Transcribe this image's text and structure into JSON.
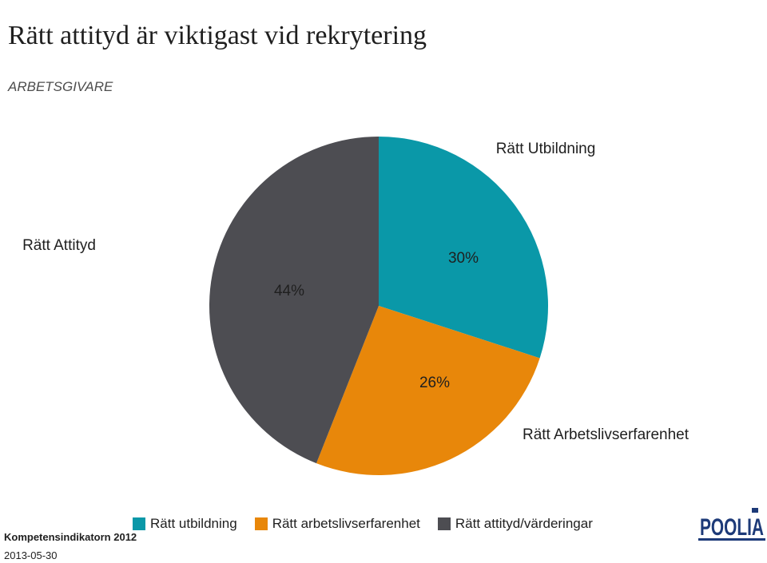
{
  "header": {
    "title": "Rätt attityd är viktigast vid rekrytering",
    "subtitle": "ARBETSGIVARE"
  },
  "chart_data": {
    "type": "pie",
    "categories": [
      "Rätt utbildning",
      "Rätt arbetslivserfarenhet",
      "Rätt attityd/värderingar"
    ],
    "values": [
      30,
      26,
      44
    ],
    "value_labels": [
      "30%",
      "26%",
      "44%"
    ],
    "slice_labels": [
      "Rätt Utbildning",
      "Rätt Arbetslivserfarenhet",
      "Rätt Attityd"
    ],
    "colors": [
      "#0a98a8",
      "#e8870a",
      "#4d4d52"
    ],
    "legend_position": "bottom",
    "start": "12 o'clock, clockwise"
  },
  "footer": {
    "source": "Kompetensindikatorn 2012",
    "date": "2013-05-30",
    "logo_text": "POOLIA"
  }
}
